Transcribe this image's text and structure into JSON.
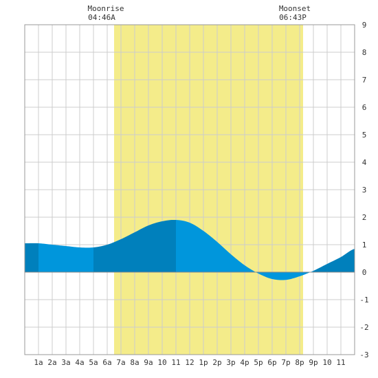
{
  "chart_data": {
    "type": "area",
    "x_ticks": [
      "1a",
      "2a",
      "3a",
      "4a",
      "5a",
      "6a",
      "7a",
      "8a",
      "9a",
      "10",
      "11",
      "12",
      "1p",
      "2p",
      "3p",
      "4p",
      "5p",
      "6p",
      "7p",
      "8p",
      "9p",
      "10",
      "11"
    ],
    "y_ticks": [
      "-3",
      "-2",
      "-1",
      "0",
      "1",
      "2",
      "3",
      "4",
      "5",
      "6",
      "7",
      "8",
      "9"
    ],
    "ylim": [
      -3,
      9
    ],
    "xlim": [
      0,
      24
    ],
    "grid": true,
    "moon_band": {
      "start_hour": 6.5,
      "end_hour": 20.25
    },
    "annotations": [
      {
        "label": "Moonrise",
        "time": "04:46A"
      },
      {
        "label": "Moonset",
        "time": "06:43P"
      }
    ],
    "series": [
      {
        "x": [
          0,
          1,
          2,
          3,
          4,
          5,
          6,
          7,
          8,
          9,
          10,
          11,
          12,
          13,
          14,
          15,
          16,
          17,
          18,
          19,
          20,
          21,
          22,
          23,
          24
        ],
        "values": [
          1.05,
          1.05,
          1.0,
          0.95,
          0.9,
          0.9,
          1.0,
          1.2,
          1.45,
          1.7,
          1.85,
          1.9,
          1.8,
          1.5,
          1.1,
          0.65,
          0.25,
          -0.05,
          -0.25,
          -0.28,
          -0.15,
          0.05,
          0.3,
          0.55,
          0.85
        ]
      }
    ],
    "colors": {
      "band": "#f4ec8a",
      "fill_light": "#0096dc",
      "fill_dark": "#0080bc",
      "grid": "#cccccc",
      "frame": "#999999",
      "zero": "#888888"
    }
  }
}
